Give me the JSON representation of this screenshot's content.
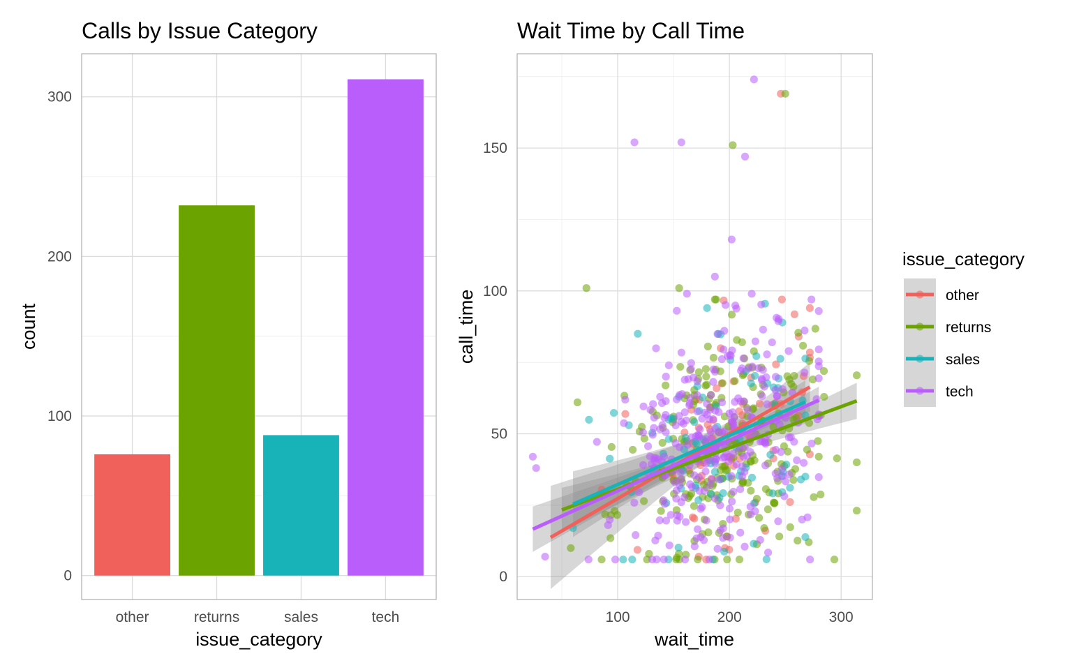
{
  "colors": {
    "other": "#F0615B",
    "returns": "#6BA300",
    "sales": "#18B2B9",
    "tech": "#B95DFB"
  },
  "chart_data": [
    {
      "type": "bar",
      "title": "Calls by Issue Category",
      "xlabel": "issue_category",
      "ylabel": "count",
      "categories": [
        "other",
        "returns",
        "sales",
        "tech"
      ],
      "values": [
        76,
        232,
        88,
        311
      ],
      "ylim": [
        -15,
        327
      ],
      "yticks": [
        0,
        100,
        200,
        300
      ],
      "grid": true,
      "legend": "none"
    },
    {
      "type": "scatter",
      "title": "Wait Time by Call Time",
      "xlabel": "wait_time",
      "ylabel": "call_time",
      "xlim": [
        10,
        328
      ],
      "ylim": [
        -8,
        183
      ],
      "xticks": [
        100,
        200,
        300
      ],
      "yticks": [
        0,
        50,
        100,
        150
      ],
      "grid": true,
      "legend_position": "right",
      "legend_title": "issue_category",
      "series": [
        {
          "name": "other",
          "fit": {
            "x_start": 40,
            "x_end": 272,
            "intercept": 4.66,
            "slope": 0.2268
          },
          "outliers": [
            [
              246,
              169
            ],
            [
              40,
              30
            ],
            [
              272,
              94
            ],
            [
              262,
              84
            ],
            [
              198,
              14
            ],
            [
              140,
              36
            ],
            [
              196,
              10
            ],
            [
              170,
              62
            ]
          ]
        },
        {
          "name": "returns",
          "fit": {
            "x_start": 50,
            "x_end": 314,
            "intercept": 16.15,
            "slope": 0.1445
          },
          "outliers": [
            [
              72,
              101
            ],
            [
              250,
              169
            ],
            [
              203,
              151
            ],
            [
              155,
              101
            ],
            [
              314,
              40
            ],
            [
              280,
              42
            ],
            [
              58,
              10
            ],
            [
              128,
              8
            ],
            [
              64,
              61
            ]
          ]
        },
        {
          "name": "sales",
          "fit": {
            "x_start": 60,
            "x_end": 268,
            "intercept": 15.04,
            "slope": 0.1719
          },
          "outliers": [
            [
              180,
              94
            ],
            [
              118,
              85
            ],
            [
              268,
              35
            ],
            [
              264,
              34
            ],
            [
              60,
              17
            ],
            [
              110,
              53
            ],
            [
              190,
              85
            ]
          ]
        },
        {
          "name": "tech",
          "fit": {
            "x_start": 24,
            "x_end": 280,
            "intercept": 12.39,
            "slope": 0.1763
          },
          "outliers": [
            [
              222,
              174
            ],
            [
              115,
              152
            ],
            [
              157,
              152
            ],
            [
              214,
              147
            ],
            [
              202,
              118
            ],
            [
              187,
              105
            ],
            [
              24,
              42
            ],
            [
              27,
              38
            ],
            [
              35,
              7
            ],
            [
              265,
              20
            ],
            [
              220,
              99
            ],
            [
              162,
              99
            ]
          ]
        }
      ]
    }
  ]
}
